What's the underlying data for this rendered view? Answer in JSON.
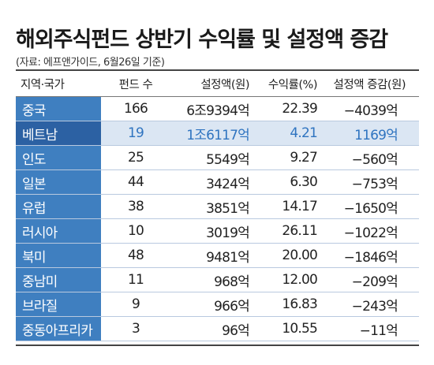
{
  "title": "해외주식펀드 상반기 수익률 및 설정액 증감",
  "source": "(자료: 에프앤가이드, 6월26일 기준)",
  "headers": [
    "지역·국가",
    "펀드 수",
    "설정액(원)",
    "수익률(%)",
    "설정액 증감(원)"
  ],
  "rows": [
    {
      "region": "중국",
      "funds": "166",
      "amount": "6조9394억",
      "return": "22.39",
      "change": "−4039억",
      "highlight": false
    },
    {
      "region": "베트남",
      "funds": "19",
      "amount": "1조6117억",
      "return": "4.21",
      "change": "1169억",
      "highlight": true
    },
    {
      "region": "인도",
      "funds": "25",
      "amount": "5549억",
      "return": "9.27",
      "change": "−560억",
      "highlight": false
    },
    {
      "region": "일본",
      "funds": "44",
      "amount": "3424억",
      "return": "6.30",
      "change": "−753억",
      "highlight": false
    },
    {
      "region": "유럽",
      "funds": "38",
      "amount": "3851억",
      "return": "14.17",
      "change": "−1650억",
      "highlight": false
    },
    {
      "region": "러시아",
      "funds": "10",
      "amount": "3019억",
      "return": "26.11",
      "change": "−1022억",
      "highlight": false
    },
    {
      "region": "북미",
      "funds": "48",
      "amount": "9481억",
      "return": "20.00",
      "change": "−1846억",
      "highlight": false
    },
    {
      "region": "중남미",
      "funds": "11",
      "amount": "968억",
      "return": "12.00",
      "change": "−209억",
      "highlight": false
    },
    {
      "region": "브라질",
      "funds": "9",
      "amount": "966억",
      "return": "16.83",
      "change": "−243억",
      "highlight": false
    },
    {
      "region": "중동아프리카",
      "funds": "3",
      "amount": "96억",
      "return": "10.55",
      "change": "−11억",
      "highlight": false
    }
  ],
  "colors": {
    "region_cell": "#3f7fc0",
    "region_cell_highlight": "#2c61a3",
    "highlight_row": "#dbe6f3",
    "highlight_text": "#2f74c0"
  }
}
